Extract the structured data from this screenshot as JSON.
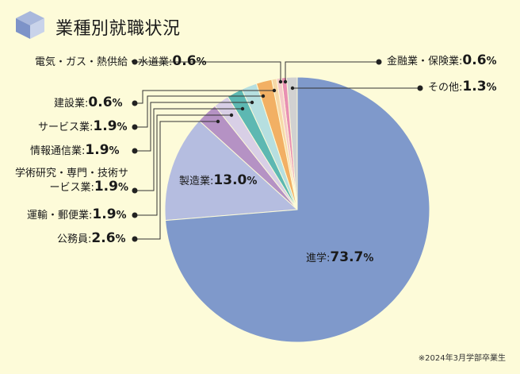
{
  "title": "業種別就職状況",
  "footnote": "※2024年3月学部卒業生",
  "chart_data": {
    "type": "pie",
    "title": "業種別就職状況",
    "unit": "%",
    "slices": [
      {
        "name": "進学",
        "value": 73.7,
        "color": "#7f99cb"
      },
      {
        "name": "製造業",
        "value": 13.0,
        "color": "#b5bde0"
      },
      {
        "name": "公務員",
        "value": 2.6,
        "color": "#b592c4"
      },
      {
        "name": "運輸・郵便業",
        "value": 1.9,
        "color": "#d8cfe6"
      },
      {
        "name": "学術研究・専門・技術サービス業",
        "value": 1.9,
        "color": "#5db8b2"
      },
      {
        "name": "情報通信業",
        "value": 1.9,
        "color": "#b6dfe0"
      },
      {
        "name": "サービス業",
        "value": 1.9,
        "color": "#f2b064"
      },
      {
        "name": "建設業",
        "value": 0.6,
        "color": "#f7d8a8"
      },
      {
        "name": "電気・ガス・熱供給・水道業",
        "value": 0.6,
        "color": "#f5c9c9"
      },
      {
        "name": "金融業・保険業",
        "value": 0.6,
        "color": "#e88fb3"
      },
      {
        "name": "その他",
        "value": 1.3,
        "color": "#d1d1d1"
      }
    ]
  }
}
